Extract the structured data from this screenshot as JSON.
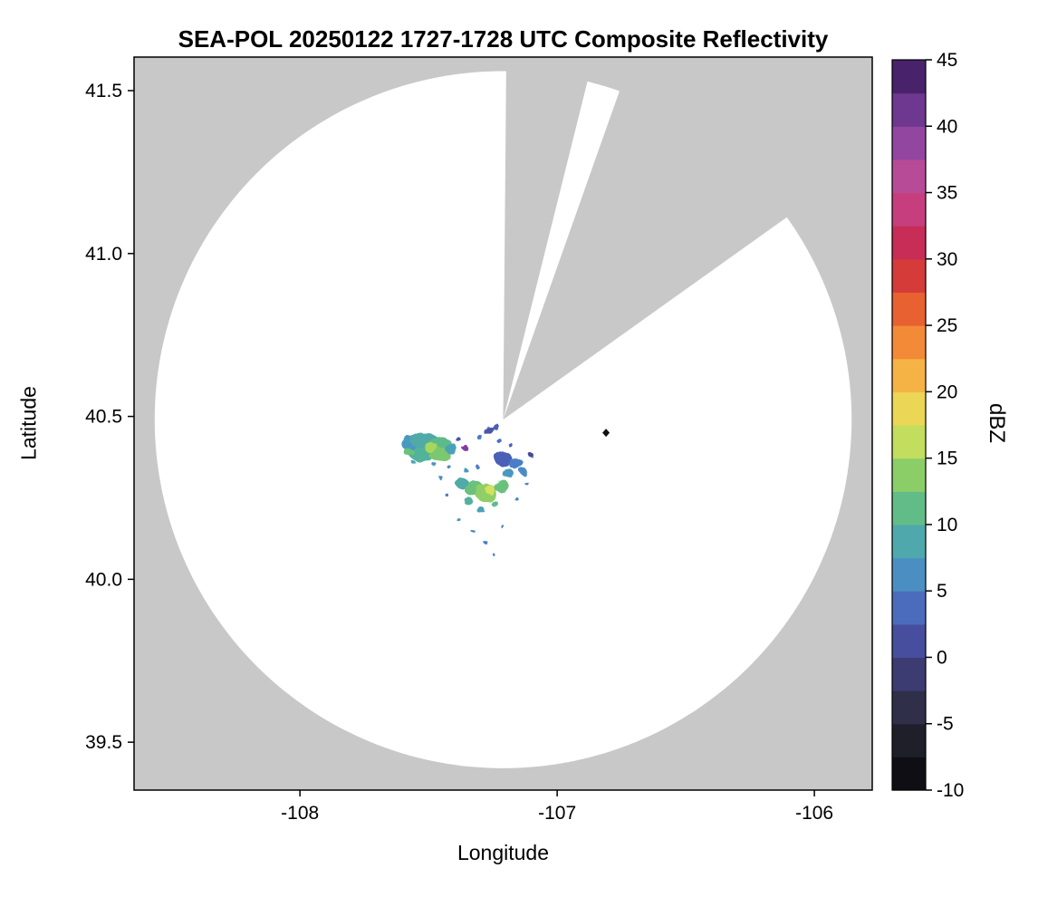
{
  "chart_data": {
    "type": "heatmap",
    "title": "SEA-POL 20250122 1727-1728 UTC Composite Reflectivity",
    "xlabel": "Longitude",
    "ylabel": "Latitude",
    "xlim": [
      -108.645,
      -105.775
    ],
    "ylim": [
      39.353,
      41.603
    ],
    "xticks": [
      -108,
      -107,
      -106
    ],
    "xtick_labels": [
      "-108",
      "-107",
      "-106"
    ],
    "yticks": [
      39.5,
      40.0,
      40.5,
      41.0,
      41.5
    ],
    "ytick_labels": [
      "39.5",
      "40.0",
      "40.5",
      "41.0",
      "41.5"
    ],
    "grid": false,
    "colors": {
      "background_gray": "#c8c8c8",
      "coverage_white": "#ffffff",
      "frame": "#000000",
      "marker": "#111111"
    },
    "radar": {
      "center_lon": -107.21,
      "center_lat": 40.49,
      "range_lat_deg": 1.07,
      "blocked_sectors_deg": [
        {
          "from": 0.5,
          "to": 14
        },
        {
          "from": 19.5,
          "to": 54.5
        }
      ]
    },
    "marker": {
      "lon": -106.81,
      "lat": 40.45,
      "shape": "diamond"
    },
    "colorbar": {
      "label": "dBZ",
      "min": -10,
      "max": 45,
      "band_step": 2.5,
      "ticks": [
        -10,
        -5,
        0,
        5,
        10,
        15,
        20,
        25,
        30,
        35,
        40,
        45
      ],
      "tick_labels": [
        "-10",
        "-5",
        "0",
        "5",
        "10",
        "15",
        "20",
        "25",
        "30",
        "35",
        "40",
        "45"
      ],
      "stops": [
        {
          "v": -10.0,
          "c": "#050508"
        },
        {
          "v": -7.5,
          "c": "#16161f"
        },
        {
          "v": -5.0,
          "c": "#272734"
        },
        {
          "v": -2.5,
          "c": "#36365e"
        },
        {
          "v": 0.0,
          "c": "#414187"
        },
        {
          "v": 2.5,
          "c": "#4a5ab2"
        },
        {
          "v": 5.0,
          "c": "#4b7ec6"
        },
        {
          "v": 7.5,
          "c": "#4a9ebe"
        },
        {
          "v": 10.0,
          "c": "#53b29a"
        },
        {
          "v": 12.5,
          "c": "#70c573"
        },
        {
          "v": 15.0,
          "c": "#a5d65d"
        },
        {
          "v": 17.5,
          "c": "#e0e45f"
        },
        {
          "v": 20.0,
          "c": "#f5c74d"
        },
        {
          "v": 22.5,
          "c": "#f69e3c"
        },
        {
          "v": 25.0,
          "c": "#f07632"
        },
        {
          "v": 27.5,
          "c": "#e04b2d"
        },
        {
          "v": 30.0,
          "c": "#ca2a45"
        },
        {
          "v": 32.5,
          "c": "#c43069"
        },
        {
          "v": 35.0,
          "c": "#c74b90"
        },
        {
          "v": 37.5,
          "c": "#a64b9f"
        },
        {
          "v": 40.0,
          "c": "#7f409e"
        },
        {
          "v": 42.5,
          "c": "#5c2e81"
        },
        {
          "v": 45.0,
          "c": "#341754"
        }
      ]
    },
    "echoes": [
      {
        "lon": -107.565,
        "lat": 40.415,
        "rx": 0.04,
        "ry": 0.022,
        "dbz": 7
      },
      {
        "lon": -107.515,
        "lat": 40.425,
        "rx": 0.055,
        "ry": 0.025,
        "dbz": 9
      },
      {
        "lon": -107.455,
        "lat": 40.415,
        "rx": 0.045,
        "ry": 0.022,
        "dbz": 11
      },
      {
        "lon": -107.525,
        "lat": 40.385,
        "rx": 0.05,
        "ry": 0.024,
        "dbz": 10
      },
      {
        "lon": -107.46,
        "lat": 40.385,
        "rx": 0.042,
        "ry": 0.02,
        "dbz": 13
      },
      {
        "lon": -107.49,
        "lat": 40.405,
        "rx": 0.028,
        "ry": 0.015,
        "dbz": 15
      },
      {
        "lon": -107.575,
        "lat": 40.39,
        "rx": 0.02,
        "ry": 0.012,
        "dbz": 12
      },
      {
        "lon": -107.41,
        "lat": 40.4,
        "rx": 0.025,
        "ry": 0.015,
        "dbz": 8
      },
      {
        "lon": -107.36,
        "lat": 40.405,
        "rx": 0.012,
        "ry": 0.009,
        "dbz": 40
      },
      {
        "lon": -107.385,
        "lat": 40.43,
        "rx": 0.01,
        "ry": 0.007,
        "dbz": 2
      },
      {
        "lon": -107.265,
        "lat": 40.455,
        "rx": 0.02,
        "ry": 0.01,
        "dbz": 2,
        "rot": -35
      },
      {
        "lon": -107.24,
        "lat": 40.47,
        "rx": 0.013,
        "ry": 0.008,
        "dbz": 3,
        "rot": -50
      },
      {
        "lon": -107.3,
        "lat": 40.435,
        "rx": 0.012,
        "ry": 0.007,
        "dbz": 5
      },
      {
        "lon": -107.21,
        "lat": 40.37,
        "rx": 0.035,
        "ry": 0.022,
        "dbz": 3
      },
      {
        "lon": -107.16,
        "lat": 40.355,
        "rx": 0.028,
        "ry": 0.018,
        "dbz": 5
      },
      {
        "lon": -107.19,
        "lat": 40.325,
        "rx": 0.022,
        "ry": 0.014,
        "dbz": 7
      },
      {
        "lon": -107.13,
        "lat": 40.33,
        "rx": 0.015,
        "ry": 0.01,
        "dbz": 6
      },
      {
        "lon": -107.1,
        "lat": 40.38,
        "rx": 0.01,
        "ry": 0.007,
        "dbz": 1
      },
      {
        "lon": -107.37,
        "lat": 40.295,
        "rx": 0.026,
        "ry": 0.016,
        "dbz": 9
      },
      {
        "lon": -107.325,
        "lat": 40.28,
        "rx": 0.038,
        "ry": 0.024,
        "dbz": 12
      },
      {
        "lon": -107.275,
        "lat": 40.265,
        "rx": 0.042,
        "ry": 0.028,
        "dbz": 14
      },
      {
        "lon": -107.26,
        "lat": 40.275,
        "rx": 0.02,
        "ry": 0.014,
        "dbz": 17
      },
      {
        "lon": -107.215,
        "lat": 40.285,
        "rx": 0.03,
        "ry": 0.02,
        "dbz": 12
      },
      {
        "lon": -107.345,
        "lat": 40.24,
        "rx": 0.018,
        "ry": 0.012,
        "dbz": 10
      },
      {
        "lon": -107.3,
        "lat": 40.215,
        "rx": 0.016,
        "ry": 0.01,
        "dbz": 8
      },
      {
        "lon": -107.24,
        "lat": 40.23,
        "rx": 0.014,
        "ry": 0.009,
        "dbz": 11
      },
      {
        "lon": -107.45,
        "lat": 40.31,
        "rx": 0.008,
        "ry": 0.006,
        "dbz": 6
      },
      {
        "lon": -107.43,
        "lat": 40.26,
        "rx": 0.007,
        "ry": 0.005,
        "dbz": 5
      },
      {
        "lon": -107.385,
        "lat": 40.185,
        "rx": 0.008,
        "ry": 0.005,
        "dbz": 7
      },
      {
        "lon": -107.33,
        "lat": 40.15,
        "rx": 0.007,
        "ry": 0.005,
        "dbz": 6
      },
      {
        "lon": -107.28,
        "lat": 40.115,
        "rx": 0.008,
        "ry": 0.005,
        "dbz": 5
      },
      {
        "lon": -107.245,
        "lat": 40.075,
        "rx": 0.006,
        "ry": 0.004,
        "dbz": 6
      },
      {
        "lon": -107.21,
        "lat": 40.16,
        "rx": 0.007,
        "ry": 0.005,
        "dbz": 5
      },
      {
        "lon": -107.155,
        "lat": 40.245,
        "rx": 0.008,
        "ry": 0.005,
        "dbz": 6
      },
      {
        "lon": -107.12,
        "lat": 40.295,
        "rx": 0.007,
        "ry": 0.005,
        "dbz": 5
      },
      {
        "lon": -107.48,
        "lat": 40.355,
        "rx": 0.009,
        "ry": 0.006,
        "dbz": 7
      },
      {
        "lon": -107.42,
        "lat": 40.345,
        "rx": 0.008,
        "ry": 0.005,
        "dbz": 6
      },
      {
        "lon": -107.56,
        "lat": 40.36,
        "rx": 0.008,
        "ry": 0.005,
        "dbz": 8
      },
      {
        "lon": -107.35,
        "lat": 40.33,
        "rx": 0.009,
        "ry": 0.006,
        "dbz": 7
      },
      {
        "lon": -107.31,
        "lat": 40.345,
        "rx": 0.008,
        "ry": 0.005,
        "dbz": 5
      },
      {
        "lon": -107.225,
        "lat": 40.425,
        "rx": 0.01,
        "ry": 0.007,
        "dbz": 4
      },
      {
        "lon": -107.185,
        "lat": 40.415,
        "rx": 0.009,
        "ry": 0.006,
        "dbz": 3
      }
    ]
  }
}
